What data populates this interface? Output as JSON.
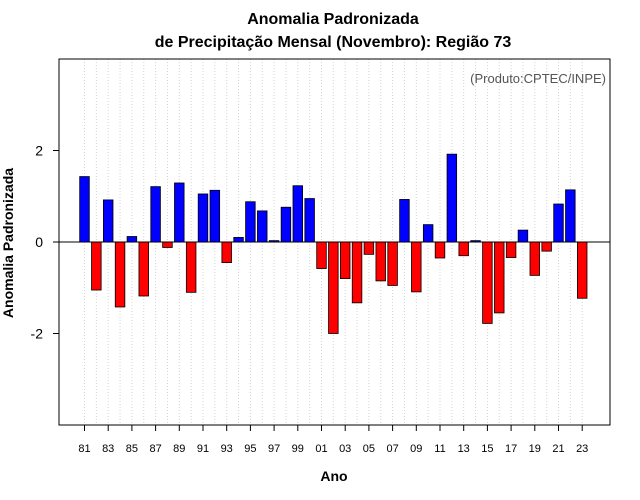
{
  "chart_data": {
    "type": "bar",
    "title": "Anomalia Padronizada",
    "subtitle": "de Precipitação Mensal (Novembro): Região 73",
    "xlabel": "Ano",
    "ylabel": "Anomalia Padronizada",
    "credit": "(Produto:CPTEC/INPE)",
    "ylim": [
      -4,
      4
    ],
    "yticks": [
      -2,
      0,
      2
    ],
    "grid": "vertical-dotted",
    "positive_color": "#0000ff",
    "negative_color": "#ff0000",
    "categories": [
      "1981",
      "1982",
      "1983",
      "1984",
      "1985",
      "1986",
      "1987",
      "1988",
      "1989",
      "1990",
      "1991",
      "1992",
      "1993",
      "1994",
      "1995",
      "1996",
      "1997",
      "1998",
      "1999",
      "2000",
      "2001",
      "2002",
      "2003",
      "2004",
      "2005",
      "2006",
      "2007",
      "2008",
      "2009",
      "2010",
      "2011",
      "2012",
      "2013",
      "2014",
      "2015",
      "2016",
      "2017",
      "2018",
      "2019",
      "2020",
      "2021",
      "2022",
      "2023"
    ],
    "tick_labels": [
      "81",
      "83",
      "85",
      "87",
      "89",
      "91",
      "93",
      "95",
      "97",
      "99",
      "01",
      "03",
      "05",
      "07",
      "09",
      "11",
      "13",
      "15",
      "17",
      "19",
      "21",
      "23"
    ],
    "values": [
      1.43,
      -1.05,
      0.92,
      -1.42,
      0.12,
      -1.18,
      1.21,
      -0.12,
      1.29,
      -1.1,
      1.05,
      1.13,
      -0.45,
      0.1,
      0.88,
      0.68,
      0.03,
      0.76,
      1.23,
      0.95,
      -0.58,
      -2.0,
      -0.8,
      -1.33,
      -0.27,
      -0.85,
      -0.95,
      0.93,
      -1.09,
      0.38,
      -0.35,
      1.92,
      -0.3,
      0.03,
      -1.78,
      -1.55,
      -0.34,
      0.26,
      -0.73,
      -0.2,
      0.83,
      1.14,
      -1.23
    ]
  }
}
